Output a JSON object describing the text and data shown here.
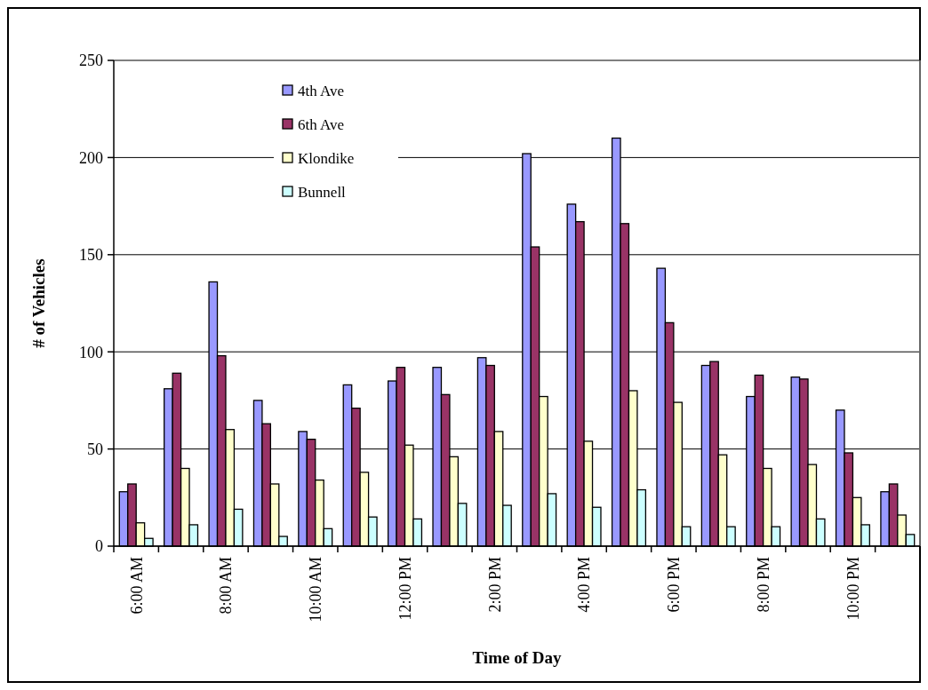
{
  "chart_data": {
    "type": "bar",
    "xlabel": "Time of Day",
    "ylabel": "# of Vehicles",
    "categories": [
      "6:00 AM",
      null,
      "8:00 AM",
      null,
      "10:00 AM",
      null,
      "12:00 PM",
      null,
      "2:00 PM",
      null,
      "4:00 PM",
      null,
      "6:00 PM",
      null,
      "8:00 PM",
      null,
      "10:00 PM",
      null
    ],
    "series": [
      {
        "name": "4th Ave",
        "color": "#9999ff",
        "values": [
          28,
          81,
          136,
          75,
          59,
          83,
          85,
          92,
          97,
          202,
          176,
          210,
          143,
          93,
          77,
          87,
          70,
          28
        ]
      },
      {
        "name": "6th Ave",
        "color": "#993366",
        "values": [
          32,
          89,
          98,
          63,
          55,
          71,
          92,
          78,
          93,
          154,
          167,
          166,
          115,
          95,
          88,
          86,
          48,
          32
        ]
      },
      {
        "name": "Klondike",
        "color": "#ffffcc",
        "values": [
          12,
          40,
          60,
          32,
          34,
          38,
          52,
          46,
          59,
          77,
          54,
          80,
          74,
          47,
          40,
          42,
          25,
          16
        ]
      },
      {
        "name": "Bunnell",
        "color": "#ccffff",
        "values": [
          4,
          11,
          19,
          5,
          9,
          15,
          14,
          22,
          21,
          27,
          20,
          29,
          10,
          10,
          10,
          14,
          11,
          6
        ]
      }
    ],
    "ylim": [
      0,
      250
    ],
    "yticks": [
      0,
      50,
      100,
      150,
      200,
      250
    ],
    "grid": "y",
    "legend": "top left"
  }
}
